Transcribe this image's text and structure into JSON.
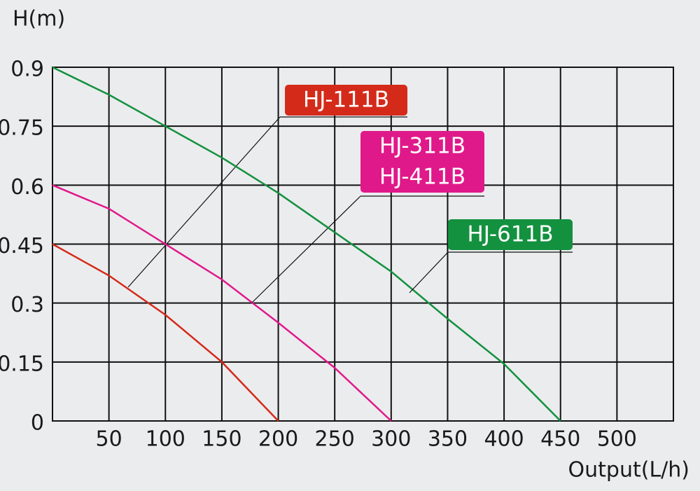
{
  "chart_data": {
    "type": "line",
    "y_label": "H(m)",
    "x_label": "Output(L/h)",
    "xlim": [
      0,
      550
    ],
    "xticks": [
      50,
      100,
      150,
      200,
      250,
      300,
      350,
      400,
      450,
      500
    ],
    "ylim": [
      0,
      0.9
    ],
    "yticks": [
      0,
      0.15,
      0.3,
      0.45,
      0.6,
      0.75,
      0.9
    ],
    "grid": true,
    "series": [
      {
        "names": [
          "HJ-111B"
        ],
        "color": "#d42a1a",
        "x": [
          0,
          50,
          100,
          150,
          200
        ],
        "values": [
          0.45,
          0.37,
          0.27,
          0.15,
          0
        ]
      },
      {
        "names": [
          "HJ-311B",
          "HJ-411B"
        ],
        "color": "#e0198a",
        "x": [
          0,
          50,
          100,
          150,
          200,
          250,
          300
        ],
        "values": [
          0.6,
          0.54,
          0.45,
          0.36,
          0.25,
          0.135,
          0
        ]
      },
      {
        "names": [
          "HJ-611B"
        ],
        "color": "#13913f",
        "x": [
          0,
          50,
          100,
          150,
          200,
          250,
          300,
          350,
          400,
          450
        ],
        "values": [
          0.9,
          0.83,
          0.75,
          0.67,
          0.58,
          0.48,
          0.38,
          0.26,
          0.145,
          0
        ]
      }
    ]
  }
}
